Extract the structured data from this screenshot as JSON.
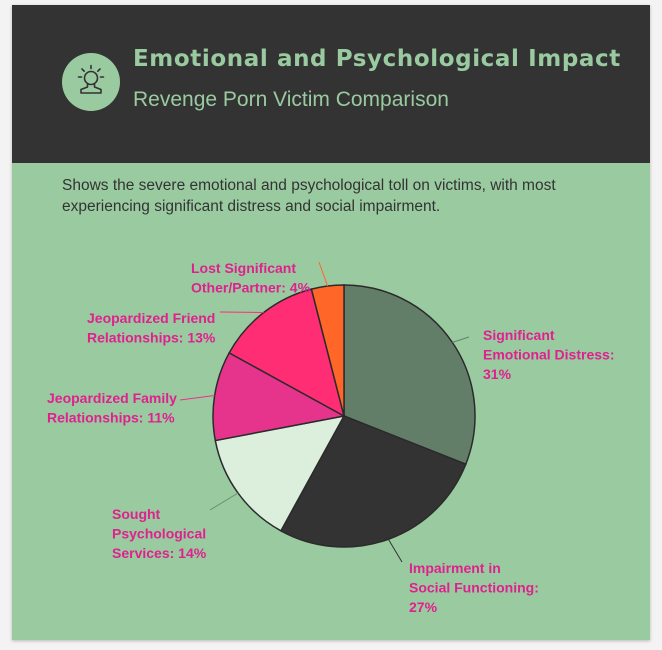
{
  "header": {
    "title": "Emotional and Psychological Impact",
    "subtitle": "Revenge Porn Victim Comparison",
    "icon": "person-head-icon"
  },
  "description": "Shows the severe emotional and psychological toll on victims, with most experiencing significant distress and social impairment.",
  "colors": {
    "background": "#9acba0",
    "header": "#333333",
    "label": "#e0208f"
  },
  "chart_data": {
    "type": "pie",
    "start_angle_deg": 0,
    "direction": "clockwise",
    "slices": [
      {
        "label": [
          "Significant",
          "Emotional Distress:",
          "31%"
        ],
        "value": 31,
        "color": "#637e68"
      },
      {
        "label": [
          "Impairment in",
          "Social Functioning:",
          "27%"
        ],
        "value": 27,
        "color": "#333333"
      },
      {
        "label": [
          "Sought",
          "Psychological",
          "Services: 14%"
        ],
        "value": 14,
        "color": "#dcefdc"
      },
      {
        "label": [
          "Jeopardized Family",
          "Relationships: 11%"
        ],
        "value": 11,
        "color": "#e6348c"
      },
      {
        "label": [
          "Jeopardized Friend",
          "Relationships: 13%"
        ],
        "value": 13,
        "color": "#ff2d74"
      },
      {
        "label": [
          "Lost Significant",
          "Other/Partner: 4%"
        ],
        "value": 4,
        "color": "#ff6628"
      }
    ]
  }
}
